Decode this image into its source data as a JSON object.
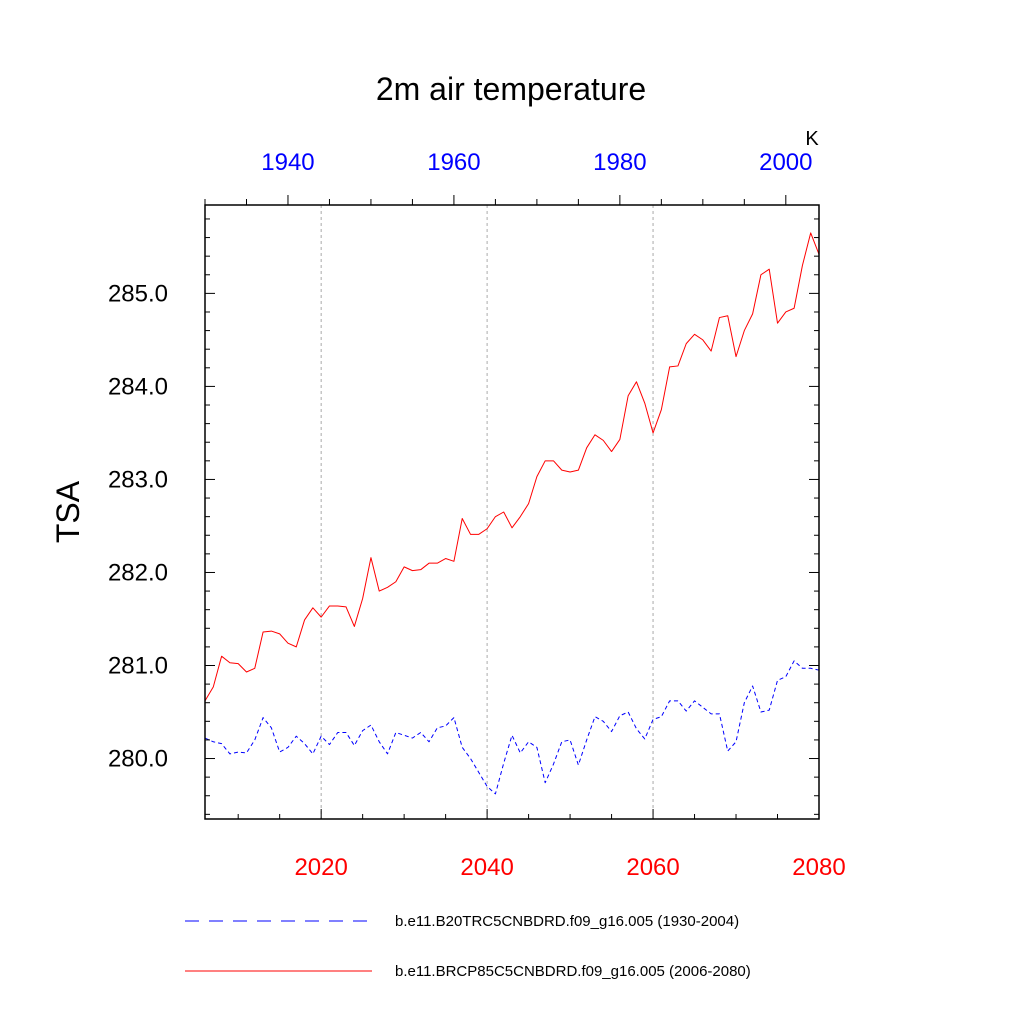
{
  "chart_data": {
    "type": "line",
    "title": "2m air temperature",
    "units": "K",
    "ylabel": "TSA",
    "ylim": [
      279.35,
      285.95
    ],
    "y_ticks": [
      {
        "value": 280,
        "label": "280.0"
      },
      {
        "value": 281,
        "label": "281.0"
      },
      {
        "value": 282,
        "label": "282.0"
      },
      {
        "value": 283,
        "label": "283.0"
      },
      {
        "value": 284,
        "label": "284.0"
      },
      {
        "value": 285,
        "label": "285.0"
      }
    ],
    "bottom_axis": {
      "range": [
        2006,
        2080
      ],
      "color": "#ff0000",
      "ticks": [
        {
          "value": 2020,
          "label": "2020"
        },
        {
          "value": 2040,
          "label": "2040"
        },
        {
          "value": 2060,
          "label": "2060"
        },
        {
          "value": 2080,
          "label": "2080"
        }
      ]
    },
    "top_axis": {
      "range": [
        1930,
        2004
      ],
      "color": "#0000ff",
      "ticks": [
        {
          "value": 1940,
          "label": "1940"
        },
        {
          "value": 1960,
          "label": "1960"
        },
        {
          "value": 1980,
          "label": "1980"
        },
        {
          "value": 2000,
          "label": "2000"
        }
      ]
    },
    "gridlines_x": [
      2020,
      2040,
      2060
    ],
    "series": [
      {
        "name": "b.e11.B20TRC5CNBDRD.f09_g16.005 (1930-2004)",
        "color": "#0000ff",
        "style": "dashed",
        "x_start": 1930,
        "values": [
          280.22,
          280.18,
          280.16,
          280.05,
          280.07,
          280.06,
          280.2,
          280.44,
          280.33,
          280.07,
          280.12,
          280.24,
          280.16,
          280.05,
          280.24,
          280.15,
          280.28,
          280.28,
          280.14,
          280.3,
          280.36,
          280.18,
          280.05,
          280.28,
          280.25,
          280.22,
          280.28,
          280.18,
          280.33,
          280.35,
          280.44,
          280.12,
          280.0,
          279.85,
          279.7,
          279.62,
          279.95,
          280.25,
          280.06,
          280.18,
          280.12,
          279.74,
          279.94,
          280.18,
          280.2,
          279.93,
          280.2,
          280.45,
          280.4,
          280.29,
          280.46,
          280.5,
          280.32,
          280.21,
          280.42,
          280.45,
          280.62,
          280.62,
          280.51,
          280.62,
          280.55,
          280.48,
          280.48,
          280.08,
          280.18,
          280.6,
          280.78,
          280.5,
          280.52,
          280.84,
          280.88,
          281.05,
          280.97,
          280.97,
          280.95
        ]
      },
      {
        "name": "b.e11.BRCP85C5CNBDRD.f09_g16.005 (2006-2080)",
        "color": "#ff0000",
        "style": "solid",
        "x_start": 2006,
        "values": [
          280.62,
          280.77,
          281.1,
          281.03,
          281.02,
          280.93,
          280.97,
          281.36,
          281.37,
          281.34,
          281.24,
          281.2,
          281.49,
          281.62,
          281.52,
          281.64,
          281.64,
          281.63,
          281.42,
          281.72,
          282.16,
          281.8,
          281.84,
          281.9,
          282.06,
          282.02,
          282.03,
          282.1,
          282.1,
          282.15,
          282.12,
          282.58,
          282.41,
          282.41,
          282.47,
          282.6,
          282.65,
          282.48,
          282.6,
          282.74,
          283.03,
          283.2,
          283.2,
          283.1,
          283.08,
          283.1,
          283.34,
          283.48,
          283.42,
          283.3,
          283.43,
          283.9,
          284.05,
          283.82,
          283.5,
          283.75,
          284.21,
          284.22,
          284.46,
          284.56,
          284.5,
          284.38,
          284.74,
          284.76,
          284.32,
          284.6,
          284.78,
          285.2,
          285.26,
          284.68,
          284.8,
          284.84,
          285.3,
          285.65,
          285.42
        ]
      }
    ]
  }
}
